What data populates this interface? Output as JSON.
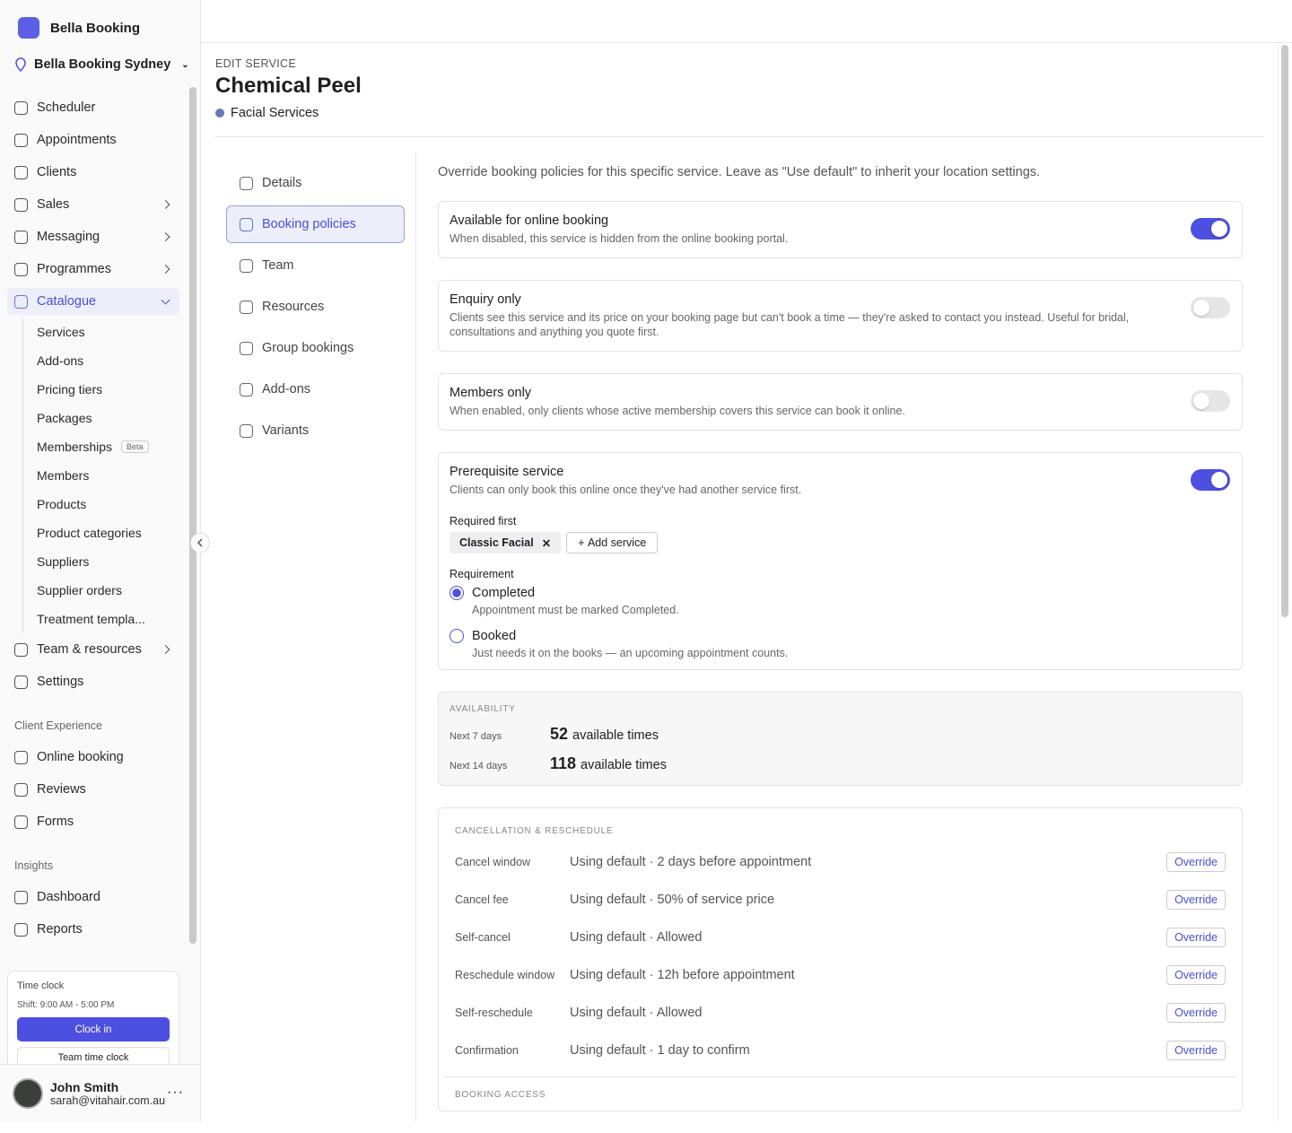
{
  "sidebar": {
    "brand": "Bella Booking",
    "location": "Bella Booking Sydney",
    "nav": [
      "Scheduler",
      "Appointments",
      "Clients",
      "Sales",
      "Messaging",
      "Programmes",
      "Catalogue"
    ],
    "catalogue_items": [
      "Services",
      "Add-ons",
      "Pricing tiers",
      "Packages",
      "Memberships",
      "Members",
      "Products",
      "Product categories",
      "Suppliers",
      "Supplier orders",
      "Treatment templa..."
    ],
    "beta_badge": "Beta",
    "nav_after": [
      "Team & resources",
      "Settings"
    ],
    "client_experience": {
      "heading": "Client Experience",
      "items": [
        "Online booking",
        "Reviews",
        "Forms"
      ]
    },
    "insights": {
      "heading": "Insights",
      "items": [
        "Dashboard",
        "Reports"
      ]
    },
    "time_clock": {
      "title": "Time clock",
      "shift": "Shift: 9:00 AM - 5:00 PM",
      "clock_in": "Clock in",
      "team_clock": "Team time clock"
    },
    "user": {
      "name": "John Smith",
      "email": "sarah@vitahair.com.au"
    }
  },
  "header": {
    "eyebrow": "EDIT SERVICE",
    "title": "Chemical Peel",
    "category": "Facial Services"
  },
  "tabs": [
    "Details",
    "Booking policies",
    "Team",
    "Resources",
    "Group bookings",
    "Add-ons",
    "Variants"
  ],
  "policies": {
    "intro": "Override booking policies for this specific service. Leave as \"Use default\" to inherit your location settings.",
    "toggles": [
      {
        "title": "Available for online booking",
        "description": "When disabled, this service is hidden from the online booking portal.",
        "enabled": true
      },
      {
        "title": "Enquiry only",
        "description": "Clients see this service and its price on your booking page but can't book a time — they're asked to contact you instead. Useful for bridal, consultations and anything you quote first.",
        "enabled": false
      },
      {
        "title": "Members only",
        "description": "When enabled, only clients whose active membership covers this service can book it online.",
        "enabled": false
      },
      {
        "title": "Prerequisite service",
        "description": "Clients can only book this online once they've had another service first.",
        "enabled": true
      }
    ],
    "prerequisite": {
      "required_label": "Required first",
      "chips": [
        "Classic Facial"
      ],
      "add": "Add service",
      "requirement_label": "Requirement",
      "options": [
        {
          "label": "Completed",
          "description": "Appointment must be marked Completed.",
          "selected": true
        },
        {
          "label": "Booked",
          "description": "Just needs it on the books — an upcoming appointment counts.",
          "selected": false
        }
      ]
    }
  },
  "availability": {
    "heading": "AVAILABILITY",
    "rows": [
      {
        "period": "Next 7 days",
        "count": 52,
        "unit": "available times"
      },
      {
        "period": "Next 14 days",
        "count": 118,
        "unit": "available times"
      }
    ]
  },
  "cancellation": {
    "heading": "CANCELLATION & RESCHEDULE",
    "rows": [
      {
        "label": "Cancel window",
        "value": "Using default · 2 days before appointment",
        "action": "Override"
      },
      {
        "label": "Cancel fee",
        "value": "Using default · 50% of service price",
        "action": "Override"
      },
      {
        "label": "Self-cancel",
        "value": "Using default · Allowed",
        "action": "Override"
      },
      {
        "label": "Reschedule window",
        "value": "Using default · 12h before appointment",
        "action": "Override"
      },
      {
        "label": "Self-reschedule",
        "value": "Using default · Allowed",
        "action": "Override"
      },
      {
        "label": "Confirmation",
        "value": "Using default · 1 day to confirm",
        "action": "Override"
      }
    ],
    "booking_access_heading": "BOOKING ACCESS"
  }
}
